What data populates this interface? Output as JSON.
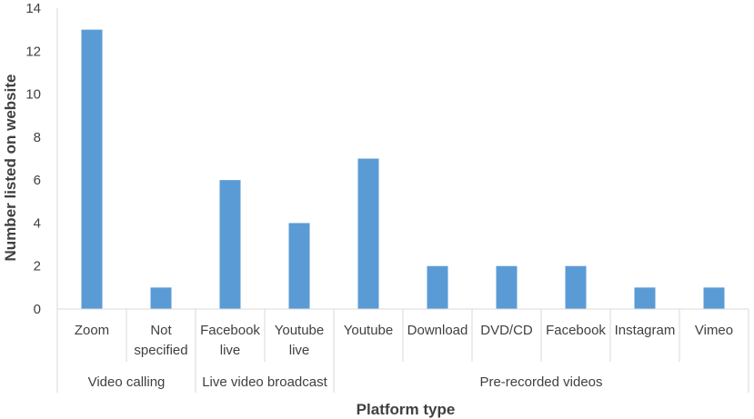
{
  "chart_data": {
    "type": "bar",
    "xlabel": "Platform type",
    "ylabel": "Number listed on website",
    "ylim": [
      0,
      14
    ],
    "yticks": [
      "0",
      "2",
      "4",
      "6",
      "8",
      "10",
      "12",
      "14"
    ],
    "grid": false,
    "color": "#5b9bd5",
    "categories": [
      [
        "Zoom"
      ],
      [
        "Not",
        "specified"
      ],
      [
        "Facebook",
        "live"
      ],
      [
        "Youtube",
        "live"
      ],
      [
        "Youtube"
      ],
      [
        "Download"
      ],
      [
        "DVD/CD"
      ],
      [
        "Facebook"
      ],
      [
        "Instagram"
      ],
      [
        "Vimeo"
      ]
    ],
    "values": [
      13,
      1,
      6,
      4,
      7,
      2,
      2,
      2,
      1,
      1
    ],
    "groups": [
      {
        "label": "Video calling",
        "count": 2
      },
      {
        "label": "Live video broadcast",
        "count": 2
      },
      {
        "label": "Pre-recorded videos",
        "count": 6
      }
    ]
  }
}
